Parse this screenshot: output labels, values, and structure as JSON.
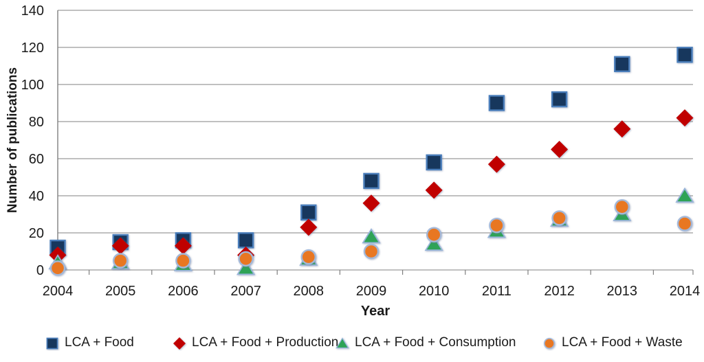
{
  "chart_data": {
    "type": "scatter",
    "title": "",
    "xlabel": "Year",
    "ylabel": "Number of publications",
    "x": [
      2004,
      2005,
      2006,
      2007,
      2008,
      2009,
      2010,
      2011,
      2012,
      2013,
      2014
    ],
    "ylim": [
      0,
      140
    ],
    "yticks": [
      0,
      20,
      40,
      60,
      80,
      100,
      120,
      140
    ],
    "grid": "horizontal",
    "legend_position": "bottom",
    "series": [
      {
        "name": "LCA + Food",
        "marker": "square",
        "fill": "#17375D",
        "border": "#4A7EBB",
        "values": [
          12,
          15,
          16,
          16,
          31,
          48,
          58,
          90,
          92,
          111,
          116
        ]
      },
      {
        "name": "LCA + Food + Production",
        "marker": "diamond",
        "fill": "#C00000",
        "border": "#C00000",
        "values": [
          8,
          13,
          13,
          8,
          23,
          36,
          43,
          57,
          65,
          76,
          82
        ]
      },
      {
        "name": "LCA + Food + Consumption",
        "marker": "triangle",
        "fill": "#2EA356",
        "border": "#98B4D9",
        "values": [
          4,
          4,
          3,
          1,
          6,
          18,
          14,
          21,
          27,
          30,
          40
        ]
      },
      {
        "name": "LCA + Food + Waste",
        "marker": "circle",
        "fill": "#E87722",
        "border": "#A3B8D9",
        "values": [
          1,
          5,
          5,
          6,
          7,
          10,
          19,
          24,
          28,
          34,
          25
        ]
      }
    ]
  },
  "colors": {
    "gridline": "#9B9B9B",
    "axis": "#7F7F7F",
    "text": "#1A1A1A",
    "background": "#FFFFFF"
  }
}
